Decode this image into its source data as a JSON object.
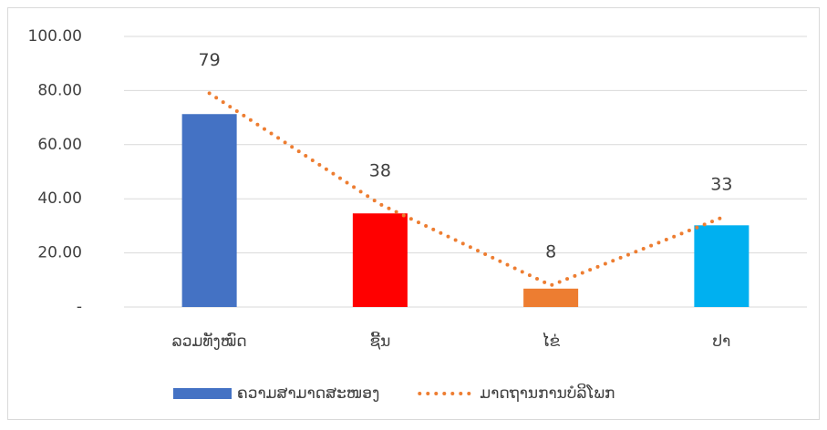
{
  "chart_data": {
    "type": "bar",
    "categories": [
      "ລວມທັງໝົດ",
      "ຊີ້ນ",
      "ໄຂ່",
      "ປາ"
    ],
    "series": [
      {
        "name": "ຄວາມສາມາດສະໜອງ",
        "type": "bar",
        "color": "#4472c4",
        "colors": [
          "#4472c4",
          "#ff0000",
          "#ed7d31",
          "#00b0f0"
        ],
        "values": [
          71.3,
          34.6,
          6.8,
          30.2
        ]
      },
      {
        "name": "ມາດຖານການບໍລິໂພກ",
        "type": "line",
        "style": "dotted",
        "color": "#ed7d31",
        "values": [
          79,
          38,
          8,
          33
        ],
        "data_labels": true
      }
    ],
    "ylim": [
      0,
      100
    ],
    "yticks": [
      {
        "value": 0,
        "label": "-"
      },
      {
        "value": 20,
        "label": "20.00"
      },
      {
        "value": 40,
        "label": "40.00"
      },
      {
        "value": 60,
        "label": "60.00"
      },
      {
        "value": 80,
        "label": "80.00"
      },
      {
        "value": 100,
        "label": "100.00"
      }
    ],
    "grid": true,
    "legend": "bottom"
  }
}
